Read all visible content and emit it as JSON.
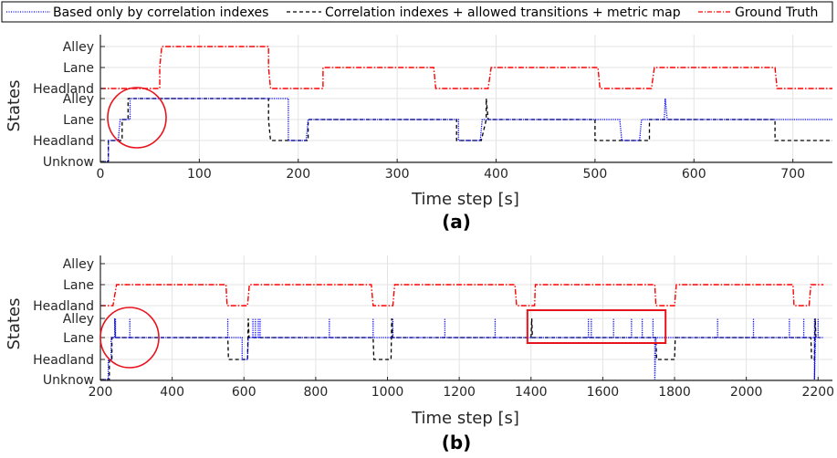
{
  "legend": {
    "entries": [
      {
        "label": "Based only by correlation indexes",
        "color": "#0000ff",
        "dash": "1 1.5"
      },
      {
        "label": "Correlation indexes + allowed transitions + metric map",
        "color": "#000000",
        "dash": "4 3"
      },
      {
        "label": "Ground Truth",
        "color": "#ff0000",
        "dash": "5 2 1 2"
      }
    ]
  },
  "chart_data": [
    {
      "type": "line",
      "caption": "(a)",
      "xlabel": "Time step [s]",
      "ylabel": "States",
      "xlim": [
        0,
        740
      ],
      "xticks": [
        0,
        100,
        200,
        300,
        400,
        500,
        600,
        700
      ],
      "grid": true,
      "lower_axis": {
        "tick_labels": [
          "Unknow",
          "Headland",
          "Lane",
          "Alley"
        ],
        "tick_values": [
          0,
          1,
          2,
          3
        ]
      },
      "upper_axis": {
        "tick_labels": [
          "Headland",
          "Lane",
          "Alley"
        ],
        "tick_values": [
          1,
          2,
          3
        ]
      },
      "series": [
        {
          "name": "Ground Truth",
          "axis": "upper",
          "points": [
            [
              0,
              1
            ],
            [
              60,
              1
            ],
            [
              60,
              2
            ],
            [
              62,
              3
            ],
            [
              170,
              3
            ],
            [
              170,
              2
            ],
            [
              172,
              1
            ],
            [
              225,
              1
            ],
            [
              225,
              2
            ],
            [
              228,
              2
            ],
            [
              337,
              2
            ],
            [
              339,
              1
            ],
            [
              392,
              1
            ],
            [
              395,
              2
            ],
            [
              503,
              2
            ],
            [
              505,
              1
            ],
            [
              557,
              1
            ],
            [
              560,
              2
            ],
            [
              682,
              2
            ],
            [
              684,
              1
            ],
            [
              740,
              1
            ]
          ]
        },
        {
          "name": "Correlation indexes + allowed transitions + metric map",
          "axis": "lower",
          "points": [
            [
              0,
              0
            ],
            [
              8,
              0
            ],
            [
              8,
              1
            ],
            [
              22,
              1
            ],
            [
              22,
              2
            ],
            [
              28,
              2
            ],
            [
              28,
              3
            ],
            [
              170,
              3
            ],
            [
              170,
              2
            ],
            [
              172,
              1
            ],
            [
              210,
              1
            ],
            [
              210,
              2
            ],
            [
              360,
              2
            ],
            [
              360,
              1
            ],
            [
              385,
              1
            ],
            [
              390,
              2
            ],
            [
              390,
              3
            ],
            [
              392,
              2
            ],
            [
              500,
              2
            ],
            [
              500,
              1
            ],
            [
              555,
              1
            ],
            [
              555,
              2
            ],
            [
              682,
              2
            ],
            [
              682,
              1
            ],
            [
              740,
              1
            ]
          ]
        },
        {
          "name": "Based only by correlation indexes",
          "axis": "lower",
          "points": [
            [
              0,
              0
            ],
            [
              8,
              0
            ],
            [
              8,
              1
            ],
            [
              18,
              1
            ],
            [
              20,
              2
            ],
            [
              30,
              2
            ],
            [
              30,
              3
            ],
            [
              190,
              3
            ],
            [
              190,
              1
            ],
            [
              208,
              1
            ],
            [
              210,
              2
            ],
            [
              262,
              2
            ],
            [
              262,
              2
            ],
            [
              362,
              2
            ],
            [
              362,
              1
            ],
            [
              384,
              1
            ],
            [
              386,
              2
            ],
            [
              525,
              2
            ],
            [
              527,
              1
            ],
            [
              545,
              1
            ],
            [
              547,
              2
            ],
            [
              570,
              2
            ],
            [
              571,
              3
            ],
            [
              573,
              2
            ],
            [
              740,
              2
            ]
          ]
        }
      ]
    },
    {
      "type": "line",
      "caption": "(b)",
      "xlabel": "Time step [s]",
      "ylabel": "States",
      "xlim": [
        200,
        2240
      ],
      "xticks": [
        200,
        400,
        600,
        800,
        1000,
        1200,
        1400,
        1600,
        1800,
        2000,
        2200
      ],
      "grid": true,
      "lower_axis": {
        "tick_labels": [
          "Unknow",
          "Headland",
          "Lane",
          "Alley"
        ],
        "tick_values": [
          0,
          1,
          2,
          3
        ]
      },
      "upper_axis": {
        "tick_labels": [
          "Headland",
          "Lane",
          "Alley"
        ],
        "tick_values": [
          1,
          2,
          3
        ]
      },
      "series": [
        {
          "name": "Ground Truth",
          "axis": "upper",
          "points": [
            [
              200,
              1
            ],
            [
              235,
              1
            ],
            [
              245,
              2
            ],
            [
              550,
              2
            ],
            [
              553,
              1
            ],
            [
              610,
              1
            ],
            [
              615,
              2
            ],
            [
              955,
              2
            ],
            [
              960,
              1
            ],
            [
              1015,
              1
            ],
            [
              1020,
              2
            ],
            [
              1355,
              2
            ],
            [
              1360,
              1
            ],
            [
              1410,
              1
            ],
            [
              1412,
              2
            ],
            [
              1745,
              2
            ],
            [
              1748,
              1
            ],
            [
              1800,
              1
            ],
            [
              1805,
              2
            ],
            [
              2130,
              2
            ],
            [
              2133,
              1
            ],
            [
              2175,
              1
            ],
            [
              2180,
              2
            ],
            [
              2215,
              2
            ]
          ]
        },
        {
          "name": "Correlation indexes + allowed transitions + metric map",
          "axis": "lower",
          "points": [
            [
              200,
              0
            ],
            [
              225,
              0
            ],
            [
              225,
              1
            ],
            [
              232,
              1
            ],
            [
              232,
              2
            ],
            [
              555,
              2
            ],
            [
              557,
              1
            ],
            [
              610,
              1
            ],
            [
              612,
              3
            ],
            [
              614,
              2
            ],
            [
              960,
              2
            ],
            [
              962,
              1
            ],
            [
              1010,
              1
            ],
            [
              1012,
              3
            ],
            [
              1014,
              2
            ],
            [
              1400,
              2
            ],
            [
              1402,
              3
            ],
            [
              1404,
              2
            ],
            [
              1748,
              2
            ],
            [
              1750,
              1
            ],
            [
              1800,
              1
            ],
            [
              1802,
              2
            ],
            [
              2180,
              2
            ],
            [
              2182,
              1
            ],
            [
              2190,
              1
            ],
            [
              2192,
              3
            ],
            [
              2194,
              2
            ],
            [
              2205,
              2
            ]
          ]
        },
        {
          "name": "Based only by correlation indexes",
          "axis": "lower",
          "points": [
            [
              200,
              0
            ],
            [
              222,
              0
            ],
            [
              222,
              1
            ],
            [
              230,
              1
            ],
            [
              230,
              2
            ],
            [
              240,
              2
            ],
            [
              240,
              3
            ],
            [
              242,
              2
            ],
            [
              595,
              2
            ],
            [
              595,
              1
            ],
            [
              610,
              1
            ],
            [
              612,
              2
            ],
            [
              1745,
              2
            ],
            [
              1745,
              0
            ],
            [
              1748,
              2
            ],
            [
              2190,
              2
            ],
            [
              2190,
              0
            ],
            [
              2193,
              2
            ],
            [
              2215,
              2
            ]
          ]
        }
      ],
      "spikes": [
        242,
        282,
        555,
        625,
        632,
        640,
        645,
        838,
        960,
        1015,
        1160,
        1300,
        1560,
        1568,
        1630,
        1680,
        1710,
        1740,
        1920,
        2020,
        2120,
        2160,
        2190,
        2200
      ],
      "annotations": [
        {
          "shape": "rectangle",
          "x_range": [
            1390,
            1775
          ]
        }
      ]
    }
  ],
  "colors": {
    "axis": "#262626",
    "grid": "#e3e3e3",
    "highlight": "#e8141c",
    "ground_truth": "#ff0000",
    "corr_only": "#0000ff",
    "corr_metric": "#000000"
  }
}
